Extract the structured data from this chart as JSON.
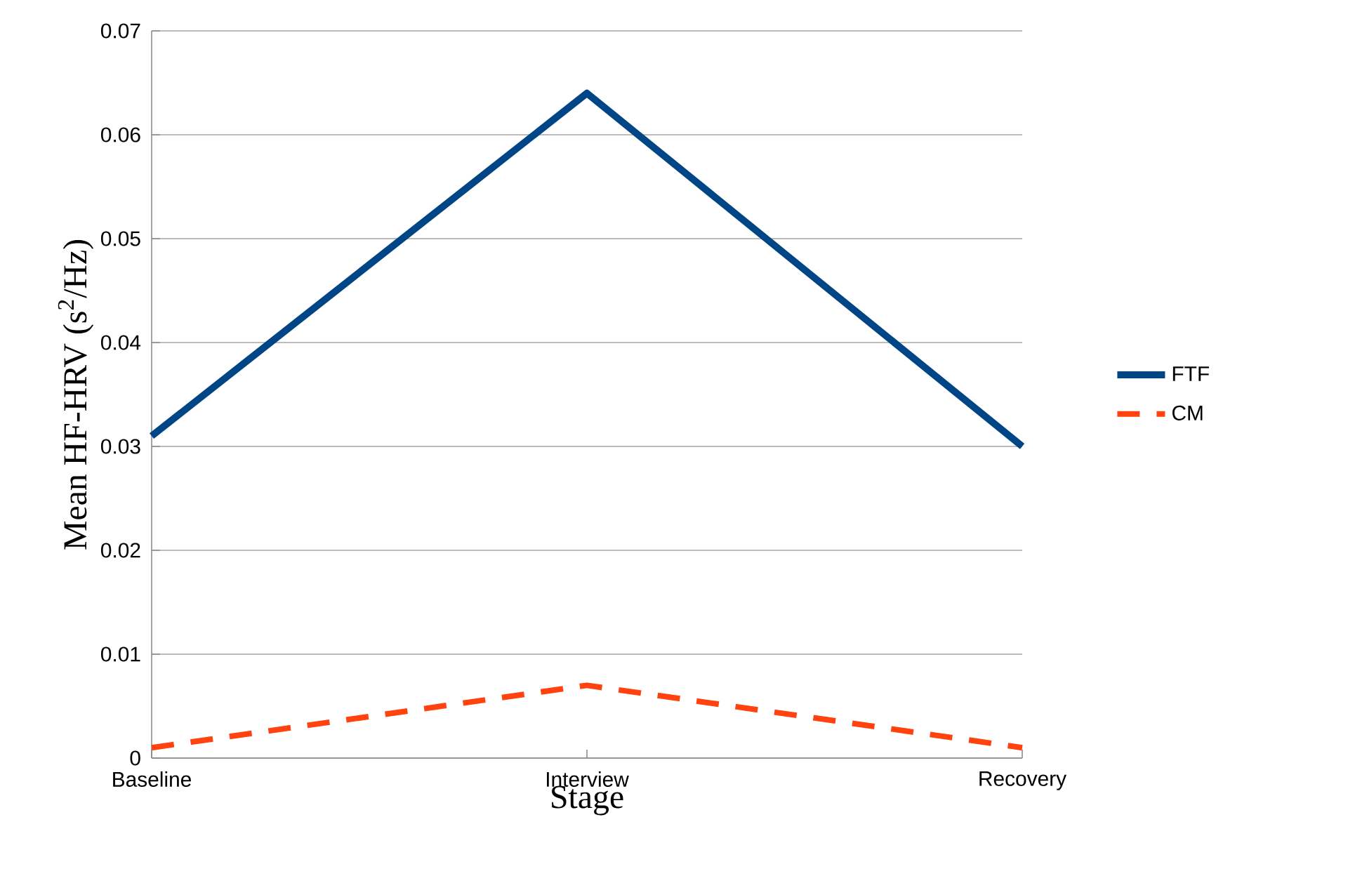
{
  "chart_data": {
    "type": "line",
    "xlabel": "Stage",
    "ylabel": "Mean HF-HRV (s$^{2}$/Hz)",
    "categories": [
      "Baseline",
      "Interview",
      "Recovery"
    ],
    "series": [
      {
        "name": "FTF",
        "color": "#004586",
        "values": [
          0.031,
          0.064,
          0.03
        ],
        "line_style": "solid"
      },
      {
        "name": "CM",
        "color": "#ff420e",
        "values": [
          0.001,
          0.007,
          0.001
        ],
        "line_style": "dashed"
      }
    ],
    "ylim": [
      0,
      0.07
    ],
    "yticks": [
      0,
      0.01,
      0.02,
      0.03,
      0.04,
      0.05,
      0.06,
      0.07
    ],
    "grid": "y",
    "legend": "right",
    "marker": "none"
  }
}
